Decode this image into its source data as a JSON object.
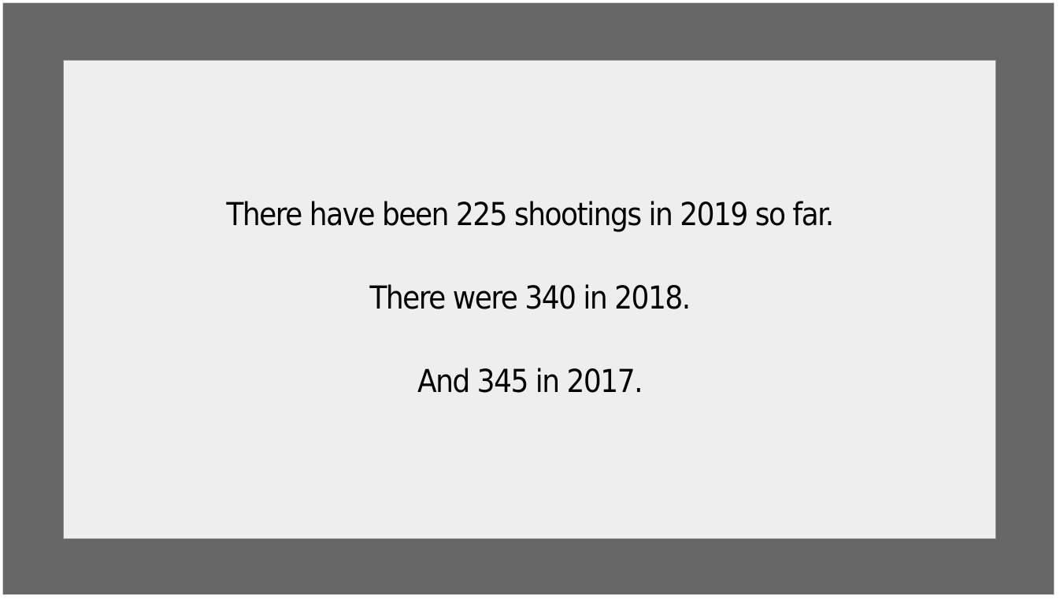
{
  "slide": {
    "lines": [
      "There have been 225 shootings in 2019 so far.",
      "There were 340 in 2018.",
      "And 345 in 2017."
    ]
  },
  "colors": {
    "frame_background": "#666666",
    "slide_background": "#eeeeee",
    "text": "#000000"
  }
}
